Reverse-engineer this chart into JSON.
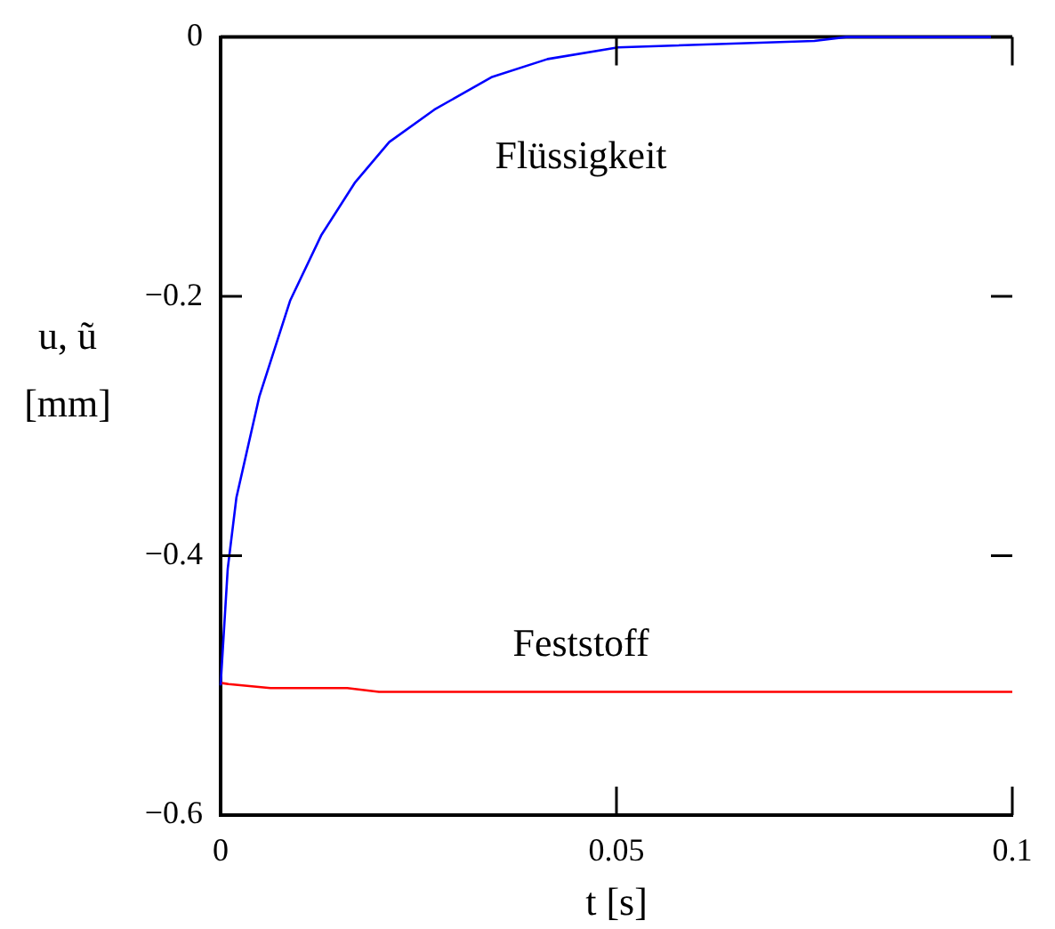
{
  "chart_data": {
    "type": "line",
    "xlabel": "t [s]",
    "ylabel": "u, ũ\n[mm]",
    "xlim": [
      0,
      0.1
    ],
    "xticks": [
      0,
      0.05,
      0.1
    ],
    "ylim": [
      -0.6,
      0
    ],
    "yticks": [
      {
        "value": -0.6,
        "label": "−0.6"
      },
      {
        "value": -0.4,
        "label": "−0.4"
      },
      {
        "value": -0.2,
        "label": "−0.2"
      },
      0
    ],
    "grid": false,
    "legend": false,
    "marker": "none",
    "line_style": "solid",
    "series": [
      {
        "name": "Flüssigkeit",
        "color": "#0000ff",
        "x": [
          0,
          0.0009,
          0.002,
          0.0049,
          0.0088,
          0.0127,
          0.017,
          0.0213,
          0.027,
          0.0342,
          0.0413,
          0.0502,
          0.075,
          0.079,
          0.1
        ],
        "values": [
          -0.5,
          -0.41,
          -0.355,
          -0.277,
          -0.203,
          -0.153,
          -0.112,
          -0.081,
          -0.056,
          -0.031,
          -0.017,
          -0.008,
          -0.003,
          0,
          0
        ]
      },
      {
        "name": "Feststoff",
        "color": "#ff0000",
        "x": [
          0,
          0.001,
          0.0063,
          0.016,
          0.02,
          0.1
        ],
        "values": [
          -0.498,
          -0.499,
          -0.502,
          -0.502,
          -0.505,
          -0.505
        ]
      }
    ]
  }
}
